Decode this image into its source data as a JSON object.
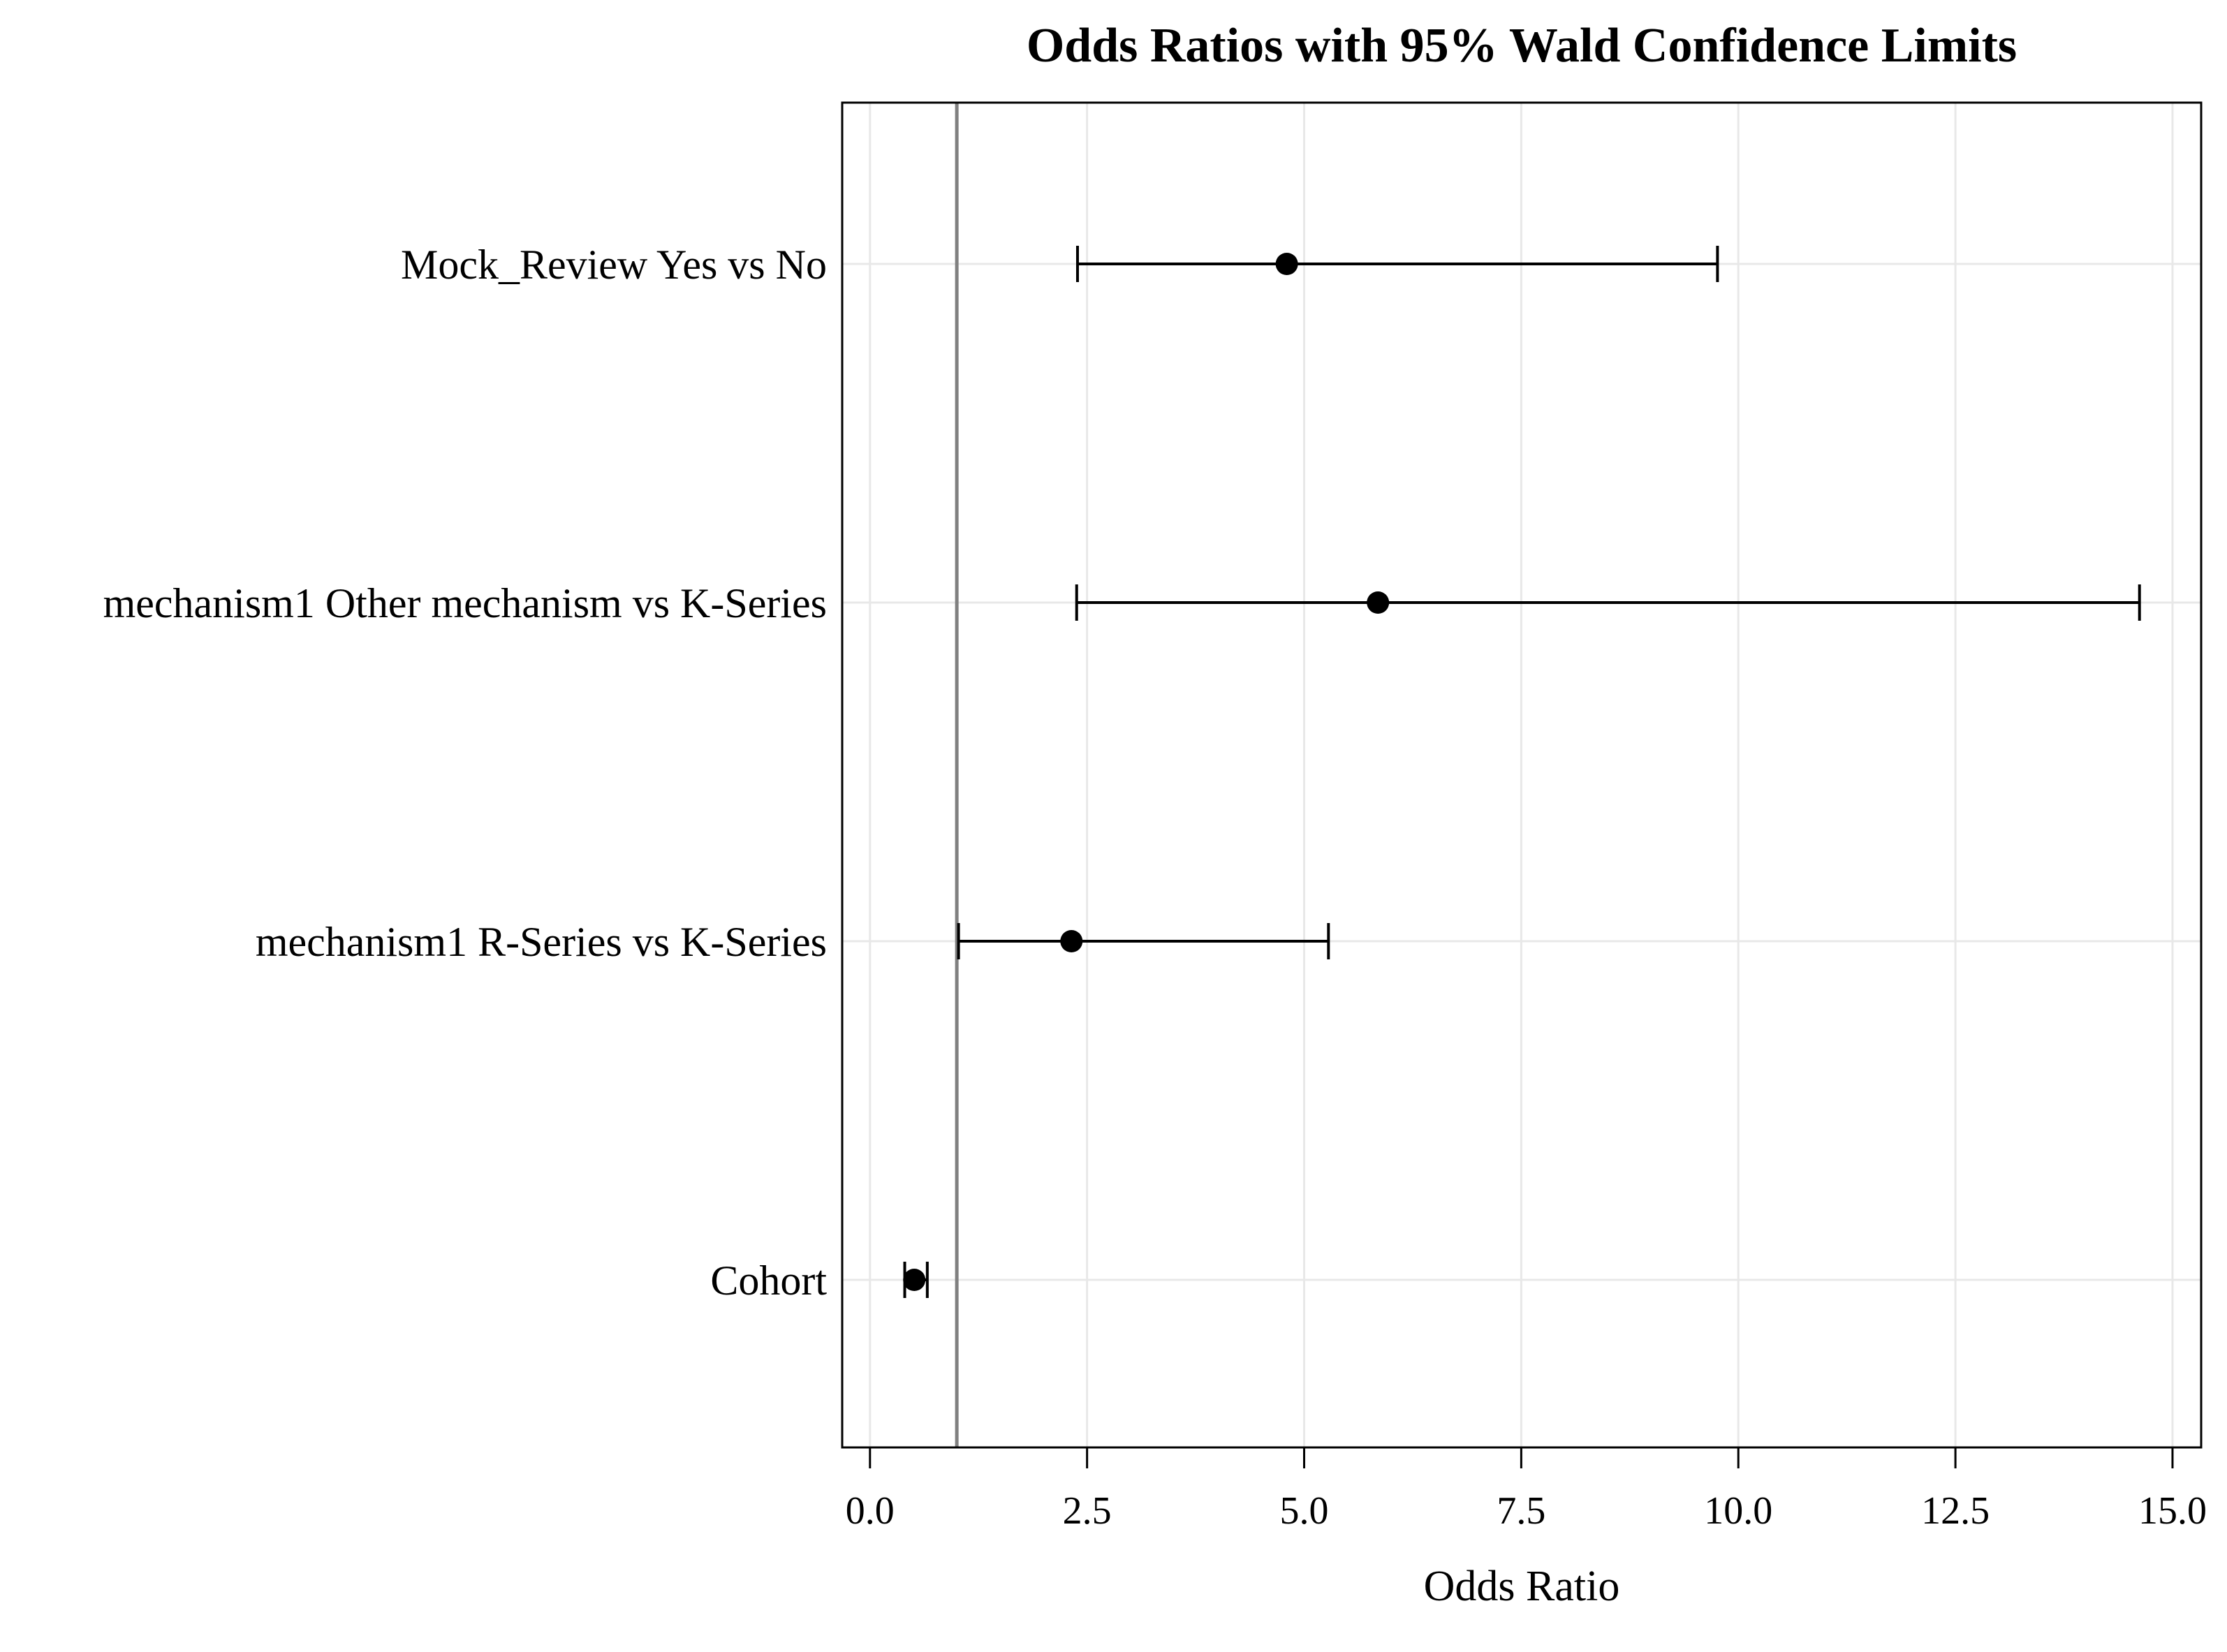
{
  "chart_data": {
    "type": "scatter",
    "variant": "forest-plot-odds-ratios-with-ci",
    "title": "Odds Ratios with 95% Wald Confidence Limits",
    "xlabel": "Odds Ratio",
    "ylabel": "",
    "categories": [
      "Mock_Review Yes vs No",
      "mechanism1 Other mechanism vs K-Series",
      "mechanism1 R-Series vs K-Series",
      "Cohort"
    ],
    "points": [
      {
        "label": "Mock_Review Yes vs No",
        "odds_ratio": 4.8,
        "ci_lower": 2.39,
        "ci_upper": 9.76
      },
      {
        "label": "mechanism1 Other mechanism vs K-Series",
        "odds_ratio": 5.85,
        "ci_lower": 2.38,
        "ci_upper": 14.62
      },
      {
        "label": "mechanism1 R-Series vs K-Series",
        "odds_ratio": 2.32,
        "ci_lower": 1.02,
        "ci_upper": 5.28
      },
      {
        "label": "Cohort",
        "odds_ratio": 0.51,
        "ci_lower": 0.4,
        "ci_upper": 0.66
      }
    ],
    "x_ticks": [
      0.0,
      2.5,
      5.0,
      7.5,
      10.0,
      12.5,
      15.0
    ],
    "x_tick_labels": [
      "0.0",
      "2.5",
      "5.0",
      "7.5",
      "10.0",
      "12.5",
      "15.0"
    ],
    "xlim": [
      -0.32,
      15.33
    ],
    "reference_line_x": 1.0,
    "grid": true,
    "legend": "none",
    "colors": {
      "point": "#000000",
      "error_bar": "#000000",
      "reference_line": "#808080",
      "gridline": "#e8e8e8",
      "frame": "#000000",
      "background": "#ffffff"
    }
  }
}
